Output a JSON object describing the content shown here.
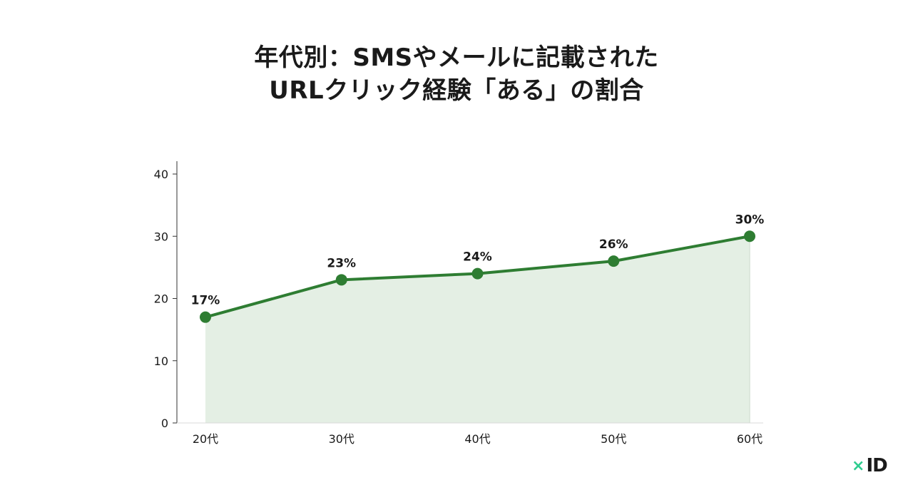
{
  "chart_data": {
    "type": "area",
    "title_lines": [
      "年代別：SMSやメールに記載された",
      "URLクリック経験「ある」の割合"
    ],
    "categories": [
      "20代",
      "30代",
      "40代",
      "50代",
      "60代"
    ],
    "series": [
      {
        "values": [
          17,
          23,
          24,
          26,
          30
        ]
      }
    ],
    "data_labels": [
      "17%",
      "23%",
      "24%",
      "26%",
      "30%"
    ],
    "yticks": [
      0,
      10,
      20,
      30,
      40
    ],
    "ylim": [
      0,
      40
    ],
    "xlabel": "",
    "ylabel": "",
    "grid": false,
    "colors": {
      "line": "#2e7d32",
      "fill": "#e4efe4",
      "axis": "#333333"
    }
  },
  "logo": {
    "x": "×",
    "id": "ID"
  }
}
